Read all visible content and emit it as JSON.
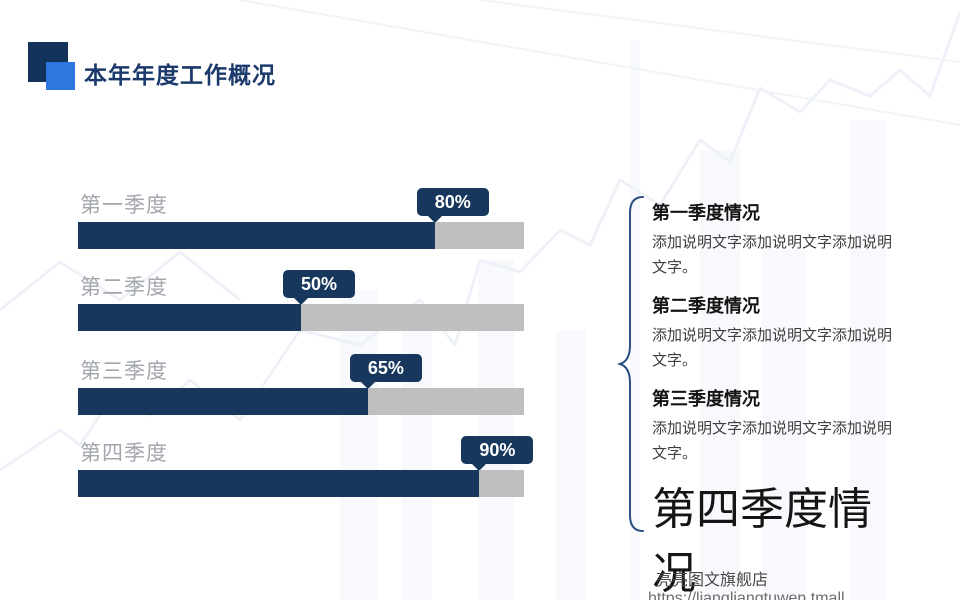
{
  "slide": {
    "title": "本年年度工作概况",
    "accent_colors": {
      "dark_navy": "#17375d",
      "light_blue": "#2e77e0",
      "track_gray": "#bfbfbf"
    }
  },
  "chart_data": {
    "type": "bar",
    "orientation": "horizontal",
    "title": "",
    "xlabel": "",
    "ylabel": "",
    "categories": [
      "第一季度",
      "第二季度",
      "第三季度",
      "第四季度"
    ],
    "values": [
      80,
      50,
      65,
      90
    ],
    "value_labels": [
      "80%",
      "50%",
      "65%",
      "90%"
    ],
    "xlim": [
      0,
      100
    ],
    "grid": false,
    "legend_position": "none",
    "bar_color": "#17375d",
    "track_color": "#bfbfbf"
  },
  "notes": [
    {
      "heading": "第一季度情况",
      "body": "添加说明文字添加说明文字添加说明文字。"
    },
    {
      "heading": "第二季度情况",
      "body": "添加说明文字添加说明文字添加说明文字。"
    },
    {
      "heading": "第三季度情况",
      "body": "添加说明文字添加说明文字添加说明文字。"
    },
    {
      "heading": "第四季度情况",
      "body": ""
    }
  ],
  "footer": {
    "shop_name": "亮亮图文旗舰店",
    "url": "https://liangliangtuwen.tmall"
  }
}
